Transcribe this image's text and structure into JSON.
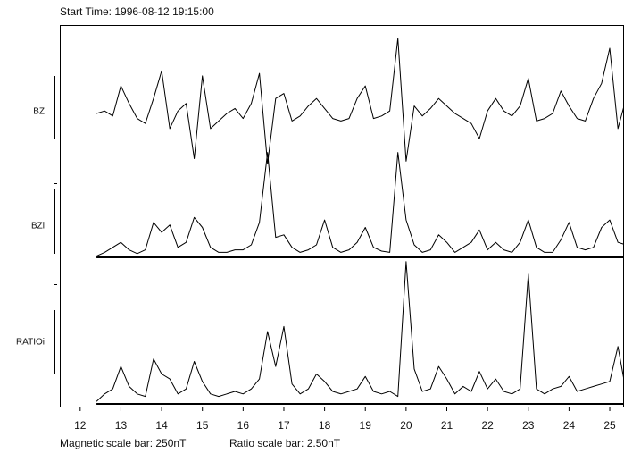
{
  "chart_data": {
    "type": "line",
    "title": "Start Time: 1996-08-12 19:15:00",
    "annotations": [
      "Magnetic scale bar: 250nT",
      "Ratio scale bar: 2.50nT"
    ],
    "xlim": [
      11.5,
      25.35
    ],
    "xticks": [
      12,
      13,
      14,
      15,
      16,
      17,
      18,
      19,
      20,
      21,
      22,
      23,
      24,
      25
    ],
    "x": [
      12.4,
      12.6,
      12.8,
      13.0,
      13.2,
      13.4,
      13.6,
      13.8,
      14.0,
      14.2,
      14.4,
      14.6,
      14.8,
      15.0,
      15.2,
      15.4,
      15.6,
      15.8,
      16.0,
      16.2,
      16.4,
      16.6,
      16.8,
      17.0,
      17.2,
      17.4,
      17.6,
      17.8,
      18.0,
      18.2,
      18.4,
      18.6,
      18.8,
      19.0,
      19.2,
      19.4,
      19.6,
      19.8,
      20.0,
      20.2,
      20.4,
      20.6,
      20.8,
      21.0,
      21.2,
      21.4,
      21.6,
      21.8,
      22.0,
      22.2,
      22.4,
      22.6,
      22.8,
      23.0,
      23.2,
      23.4,
      23.6,
      23.8,
      24.0,
      24.2,
      24.4,
      24.6,
      24.8,
      25.0,
      25.2,
      25.4
    ],
    "series": [
      {
        "name": "BZ",
        "color": "#000000",
        "ylim": [
          -260,
          310
        ],
        "baseline": false,
        "values": [
          0,
          10,
          -10,
          110,
          40,
          -20,
          -40,
          60,
          170,
          -60,
          10,
          40,
          -180,
          150,
          -60,
          -30,
          0,
          20,
          -20,
          40,
          160,
          -200,
          60,
          80,
          -30,
          -10,
          30,
          60,
          20,
          -20,
          -30,
          -20,
          60,
          110,
          -20,
          -10,
          10,
          300,
          -190,
          30,
          -10,
          20,
          60,
          30,
          0,
          -20,
          -40,
          -100,
          10,
          60,
          10,
          -10,
          30,
          140,
          -30,
          -20,
          0,
          90,
          30,
          -20,
          -30,
          60,
          120,
          260,
          -60,
          60
        ]
      },
      {
        "name": "BZi",
        "color": "#000000",
        "ylim": [
          0,
          440
        ],
        "baseline": true,
        "values": [
          5,
          20,
          40,
          60,
          30,
          15,
          30,
          140,
          100,
          130,
          40,
          60,
          160,
          120,
          40,
          20,
          20,
          30,
          30,
          50,
          140,
          420,
          80,
          90,
          40,
          20,
          30,
          50,
          150,
          40,
          20,
          30,
          60,
          120,
          40,
          25,
          20,
          420,
          150,
          50,
          20,
          30,
          90,
          60,
          20,
          40,
          60,
          110,
          30,
          60,
          30,
          20,
          60,
          150,
          40,
          20,
          20,
          70,
          140,
          40,
          30,
          40,
          120,
          150,
          60,
          50
        ]
      },
      {
        "name": "RATIOi",
        "color": "#000000",
        "ylim": [
          0,
          5.8
        ],
        "baseline": true,
        "values": [
          0.1,
          0.4,
          0.6,
          1.5,
          0.7,
          0.4,
          0.3,
          1.8,
          1.2,
          1.0,
          0.4,
          0.6,
          1.7,
          0.9,
          0.4,
          0.3,
          0.4,
          0.5,
          0.4,
          0.6,
          1.0,
          2.9,
          1.5,
          3.1,
          0.8,
          0.4,
          0.6,
          1.2,
          0.9,
          0.5,
          0.4,
          0.5,
          0.6,
          1.1,
          0.5,
          0.4,
          0.5,
          0.3,
          5.7,
          1.4,
          0.5,
          0.6,
          1.5,
          1.0,
          0.4,
          0.7,
          0.5,
          1.3,
          0.6,
          1.0,
          0.5,
          0.4,
          0.6,
          5.2,
          0.6,
          0.4,
          0.6,
          0.7,
          1.1,
          0.5,
          0.6,
          0.7,
          0.8,
          0.9,
          2.3,
          0.5
        ]
      }
    ]
  }
}
